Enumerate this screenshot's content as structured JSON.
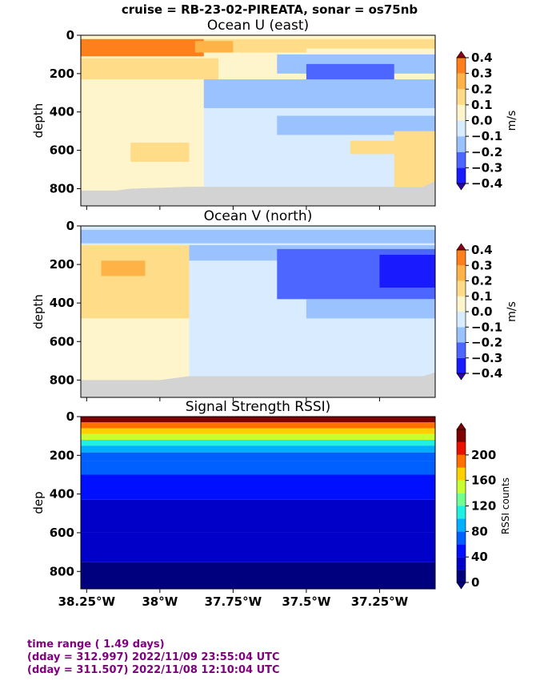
{
  "suptitle": "cruise = RB-23-02-PIREATA,  sonar = os75nb",
  "footer": {
    "line1": "time range ( 1.49 days)",
    "line2": "(dday = 312.997) 2022/11/09 23:55:04 UTC",
    "line3": "(dday = 311.507) 2022/11/08 12:10:04 UTC",
    "color": "#800080"
  },
  "colors": {
    "velocity_levels": [
      "#3300a8",
      "#1a1aff",
      "#4d66ff",
      "#99c2ff",
      "#d9ecff",
      "#fff5cc",
      "#ffdd88",
      "#ffb347",
      "#ff7f1a",
      "#e83e00",
      "#8a0015"
    ],
    "rssi_levels": [
      "#00007f",
      "#0000c8",
      "#0010ff",
      "#0060ff",
      "#00b0ff",
      "#20f0e0",
      "#70ff90",
      "#c8ff30",
      "#ffd000",
      "#ff7000",
      "#e81000",
      "#7f0000"
    ],
    "nodata": "#d3d3d3"
  },
  "chart_data": [
    {
      "type": "heatmap",
      "title": "Ocean U (east)",
      "ylabel": "depth",
      "ylim": [
        890,
        0
      ],
      "yticks": [
        "0",
        "200",
        "400",
        "600",
        "800"
      ],
      "xlim": [
        -38.27,
        -37.06
      ],
      "colorbar": {
        "label": "m/s",
        "levels": [
          -0.4,
          -0.3,
          -0.2,
          -0.1,
          0.0,
          0.1,
          0.2,
          0.3,
          0.4
        ],
        "ticks": [
          "0.4",
          "0.3",
          "0.2",
          "0.1",
          "0.0",
          "−0.1",
          "−0.2",
          "−0.3",
          "−0.4"
        ]
      },
      "blocks": [
        {
          "x": [
            -38.27,
            -37.06
          ],
          "y": [
            0,
            820
          ],
          "v": 0.05
        },
        {
          "x": [
            -38.27,
            -37.85
          ],
          "y": [
            20,
            110
          ],
          "v": 0.35
        },
        {
          "x": [
            -37.85,
            -37.5
          ],
          "y": [
            20,
            90
          ],
          "v": 0.15
        },
        {
          "x": [
            -37.5,
            -37.06
          ],
          "y": [
            20,
            70
          ],
          "v": 0.12
        },
        {
          "x": [
            -37.88,
            -37.75
          ],
          "y": [
            30,
            90
          ],
          "v": 0.25
        },
        {
          "x": [
            -38.27,
            -37.8
          ],
          "y": [
            120,
            230
          ],
          "v": 0.15
        },
        {
          "x": [
            -37.6,
            -37.06
          ],
          "y": [
            100,
            200
          ],
          "v": -0.15
        },
        {
          "x": [
            -37.5,
            -37.2
          ],
          "y": [
            150,
            300
          ],
          "v": -0.25
        },
        {
          "x": [
            -37.85,
            -37.06
          ],
          "y": [
            230,
            380
          ],
          "v": -0.15
        },
        {
          "x": [
            -37.85,
            -37.06
          ],
          "y": [
            380,
            790
          ],
          "v": -0.05
        },
        {
          "x": [
            -37.6,
            -37.06
          ],
          "y": [
            420,
            520
          ],
          "v": -0.15
        },
        {
          "x": [
            -37.35,
            -37.2
          ],
          "y": [
            550,
            620
          ],
          "v": 0.15
        },
        {
          "x": [
            -37.2,
            -37.06
          ],
          "y": [
            500,
            790
          ],
          "v": 0.12
        },
        {
          "x": [
            -38.1,
            -37.9
          ],
          "y": [
            560,
            660
          ],
          "v": 0.12
        }
      ],
      "nodata_boundary": [
        [
          -38.27,
          810
        ],
        [
          -38.15,
          810
        ],
        [
          -38.1,
          800
        ],
        [
          -37.9,
          790
        ],
        [
          -37.1,
          790
        ],
        [
          -37.06,
          760
        ],
        [
          -37.06,
          890
        ],
        [
          -38.27,
          890
        ]
      ]
    },
    {
      "type": "heatmap",
      "title": "Ocean V (north)",
      "ylabel": "depth",
      "ylim": [
        890,
        0
      ],
      "yticks": [
        "0",
        "200",
        "400",
        "600",
        "800"
      ],
      "xlim": [
        -38.27,
        -37.06
      ],
      "colorbar": {
        "label": "m/s",
        "levels": [
          -0.4,
          -0.3,
          -0.2,
          -0.1,
          0.0,
          0.1,
          0.2,
          0.3,
          0.4
        ],
        "ticks": [
          "0.4",
          "0.3",
          "0.2",
          "0.1",
          "0.0",
          "−0.1",
          "−0.2",
          "−0.3",
          "−0.4"
        ]
      },
      "blocks": [
        {
          "x": [
            -38.27,
            -37.06
          ],
          "y": [
            0,
            820
          ],
          "v": -0.05
        },
        {
          "x": [
            -38.27,
            -37.06
          ],
          "y": [
            20,
            90
          ],
          "v": -0.12
        },
        {
          "x": [
            -38.27,
            -37.9
          ],
          "y": [
            100,
            480
          ],
          "v": 0.15
        },
        {
          "x": [
            -38.2,
            -38.05
          ],
          "y": [
            180,
            260
          ],
          "v": 0.25
        },
        {
          "x": [
            -37.9,
            -37.06
          ],
          "y": [
            100,
            180
          ],
          "v": -0.12
        },
        {
          "x": [
            -37.6,
            -37.06
          ],
          "y": [
            120,
            380
          ],
          "v": -0.25
        },
        {
          "x": [
            -37.25,
            -37.06
          ],
          "y": [
            150,
            320
          ],
          "v": -0.35
        },
        {
          "x": [
            -37.5,
            -37.06
          ],
          "y": [
            380,
            480
          ],
          "v": -0.12
        },
        {
          "x": [
            -38.27,
            -37.9
          ],
          "y": [
            480,
            820
          ],
          "v": 0.05
        }
      ],
      "nodata_boundary": [
        [
          -38.27,
          800
        ],
        [
          -38.0,
          800
        ],
        [
          -37.9,
          780
        ],
        [
          -37.1,
          780
        ],
        [
          -37.06,
          760
        ],
        [
          -37.06,
          890
        ],
        [
          -38.27,
          890
        ]
      ]
    },
    {
      "type": "heatmap",
      "title": "Signal Strength RSSI)",
      "ylabel": "dep",
      "ylim": [
        890,
        0
      ],
      "yticks": [
        "0",
        "200",
        "400",
        "600",
        "800"
      ],
      "xlim": [
        -38.27,
        -37.06
      ],
      "xticks": [
        {
          "value": -38.25,
          "label": "38.25°W"
        },
        {
          "value": -38.0,
          "label": "38°W"
        },
        {
          "value": -37.75,
          "label": "37.75°W"
        },
        {
          "value": -37.5,
          "label": "37.5°W"
        },
        {
          "value": -37.25,
          "label": "37.25°W"
        }
      ],
      "colorbar": {
        "label": "RSSI counts",
        "levels": [
          0,
          20,
          40,
          60,
          80,
          100,
          120,
          140,
          160,
          180,
          200,
          220,
          240
        ],
        "ticks": [
          "200",
          "160",
          "120",
          "80",
          "40",
          "0"
        ]
      },
      "profile": [
        {
          "y": [
            0,
            30
          ],
          "v": 230
        },
        {
          "y": [
            30,
            60
          ],
          "v": 195
        },
        {
          "y": [
            60,
            90
          ],
          "v": 165
        },
        {
          "y": [
            90,
            120
          ],
          "v": 140
        },
        {
          "y": [
            120,
            150
          ],
          "v": 115
        },
        {
          "y": [
            150,
            185
          ],
          "v": 95
        },
        {
          "y": [
            185,
            230
          ],
          "v": 75
        },
        {
          "y": [
            230,
            300
          ],
          "v": 60
        },
        {
          "y": [
            300,
            430
          ],
          "v": 50
        },
        {
          "y": [
            430,
            600
          ],
          "v": 38
        },
        {
          "y": [
            600,
            750
          ],
          "v": 25
        },
        {
          "y": [
            750,
            890
          ],
          "v": 15
        }
      ]
    }
  ]
}
